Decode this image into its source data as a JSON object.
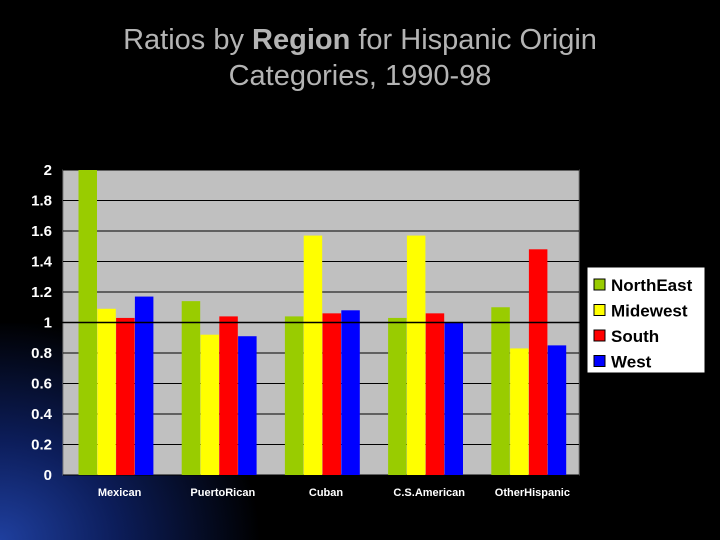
{
  "title": {
    "part1": "Ratios by ",
    "bold": "Region",
    "part2": " for Hispanic Origin",
    "line2": "Categories, 1990-98"
  },
  "chart_data": {
    "type": "bar",
    "categories": [
      "Mexican",
      "PuertoRican",
      "Cuban",
      "C.S.American",
      "OtherHispanic"
    ],
    "series": [
      {
        "name": "NorthEast",
        "color": "#99cc00",
        "values": [
          2.0,
          1.14,
          1.04,
          1.03,
          1.1
        ]
      },
      {
        "name": "Midewest",
        "color": "#ffff00",
        "values": [
          1.09,
          0.92,
          1.57,
          1.57,
          0.83
        ]
      },
      {
        "name": "South",
        "color": "#ff0000",
        "values": [
          1.03,
          1.04,
          1.06,
          1.06,
          1.48
        ]
      },
      {
        "name": "West",
        "color": "#0000ff",
        "values": [
          1.17,
          0.91,
          1.08,
          1.0,
          0.85
        ]
      }
    ],
    "ylim": [
      0,
      2
    ],
    "yticks": [
      "0",
      "0.2",
      "0.4",
      "0.6",
      "0.8",
      "1",
      "1.2",
      "1.4",
      "1.6",
      "1.8",
      "2"
    ],
    "reference_line": 1,
    "grid": true,
    "legend_position": "right",
    "plot_background": "#c0c0c0"
  }
}
